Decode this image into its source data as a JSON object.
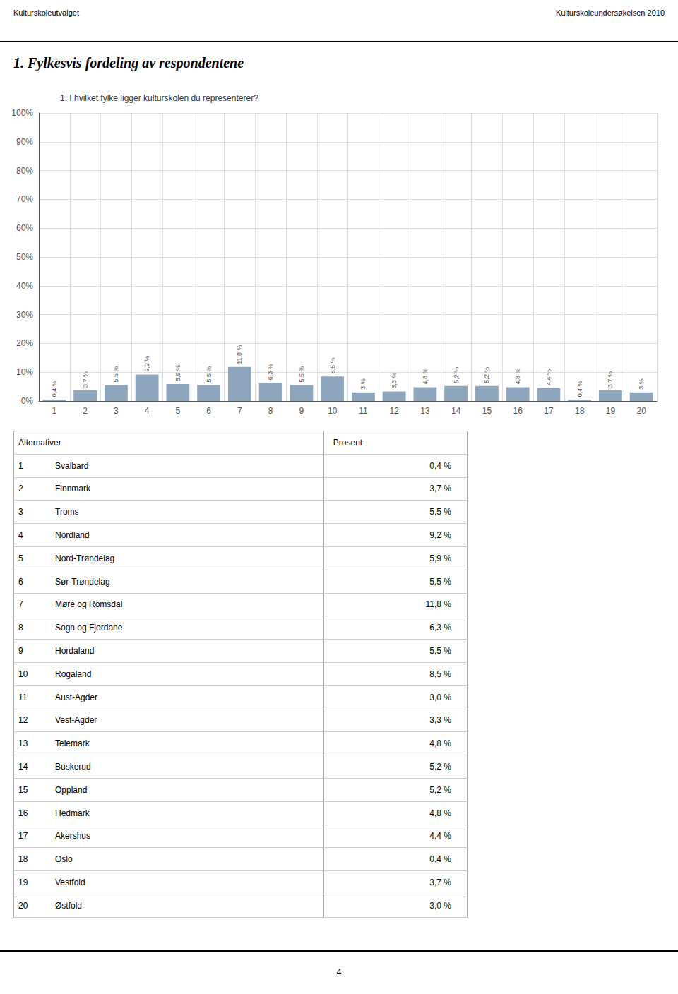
{
  "chart_data": {
    "type": "bar",
    "title": "1. Fylkesvis fordeling av respondentene",
    "subtitle": "1. I hvilket fylke ligger kulturskolen du representerer?",
    "header": [
      "Kulturskoleutvalget",
      "Kulturskoleundersøkelsen 2010"
    ],
    "footer": "4",
    "categories": [
      "1",
      "2",
      "3",
      "4",
      "5",
      "6",
      "7",
      "8",
      "9",
      "10",
      "11",
      "12",
      "13",
      "14",
      "15",
      "16",
      "17",
      "18",
      "19",
      "20"
    ],
    "values": [
      0.4,
      3.7,
      5.5,
      9.2,
      5.9,
      5.5,
      11.8,
      6.3,
      5.5,
      8.5,
      3.0,
      3.3,
      4.8,
      5.2,
      5.2,
      4.8,
      4.4,
      0.4,
      3.7,
      3.0
    ],
    "value_labels": [
      "0,4 %",
      "3,7 %",
      "5,5 %",
      "9,2 %",
      "5,9 %",
      "5,5 %",
      "11,8 %",
      "6,3 %",
      "5,5 %",
      "8,5 %",
      "3 %",
      "3,3 %",
      "4,8 %",
      "5,2 %",
      "5,2 %",
      "4,8 %",
      "4,4 %",
      "0,4 %",
      "3,7 %",
      "3 %"
    ],
    "data_labels": true,
    "color": "#8da6be",
    "ylim": [
      0,
      100
    ],
    "yticks": [
      {
        "value": 0,
        "label": "0%"
      },
      {
        "value": 10,
        "label": "10%"
      },
      {
        "value": 20,
        "label": "20%"
      },
      {
        "value": 30,
        "label": "30%"
      },
      {
        "value": 40,
        "label": "40%"
      },
      {
        "value": 50,
        "label": "50%"
      },
      {
        "value": 60,
        "label": "60%"
      },
      {
        "value": 70,
        "label": "70%"
      },
      {
        "value": 80,
        "label": "80%"
      },
      {
        "value": 90,
        "label": "90%"
      },
      {
        "value": 100,
        "label": "100%"
      }
    ],
    "grid": true,
    "table": {
      "columns": [
        "Alternativer",
        "Prosent"
      ],
      "rows": [
        [
          1,
          "Svalbard",
          "0,4 %"
        ],
        [
          2,
          "Finnmark",
          "3,7 %"
        ],
        [
          3,
          "Troms",
          "5,5 %"
        ],
        [
          4,
          "Nordland",
          "9,2 %"
        ],
        [
          5,
          "Nord-Trøndelag",
          "5,9 %"
        ],
        [
          6,
          "Sør-Trøndelag",
          "5,5 %"
        ],
        [
          7,
          "Møre og Romsdal",
          "11,8 %"
        ],
        [
          8,
          "Sogn og Fjordane",
          "6,3 %"
        ],
        [
          9,
          "Hordaland",
          "5,5 %"
        ],
        [
          10,
          "Rogaland",
          "8,5 %"
        ],
        [
          11,
          "Aust-Agder",
          "3,0 %"
        ],
        [
          12,
          "Vest-Agder",
          "3,3 %"
        ],
        [
          13,
          "Telemark",
          "4,8 %"
        ],
        [
          14,
          "Buskerud",
          "5,2 %"
        ],
        [
          15,
          "Oppland",
          "5,2 %"
        ],
        [
          16,
          "Hedmark",
          "4,8 %"
        ],
        [
          17,
          "Akershus",
          "4,4 %"
        ],
        [
          18,
          "Oslo",
          "0,4 %"
        ],
        [
          19,
          "Vestfold",
          "3,7 %"
        ],
        [
          20,
          "Østfold",
          "3,0 %"
        ]
      ]
    }
  }
}
